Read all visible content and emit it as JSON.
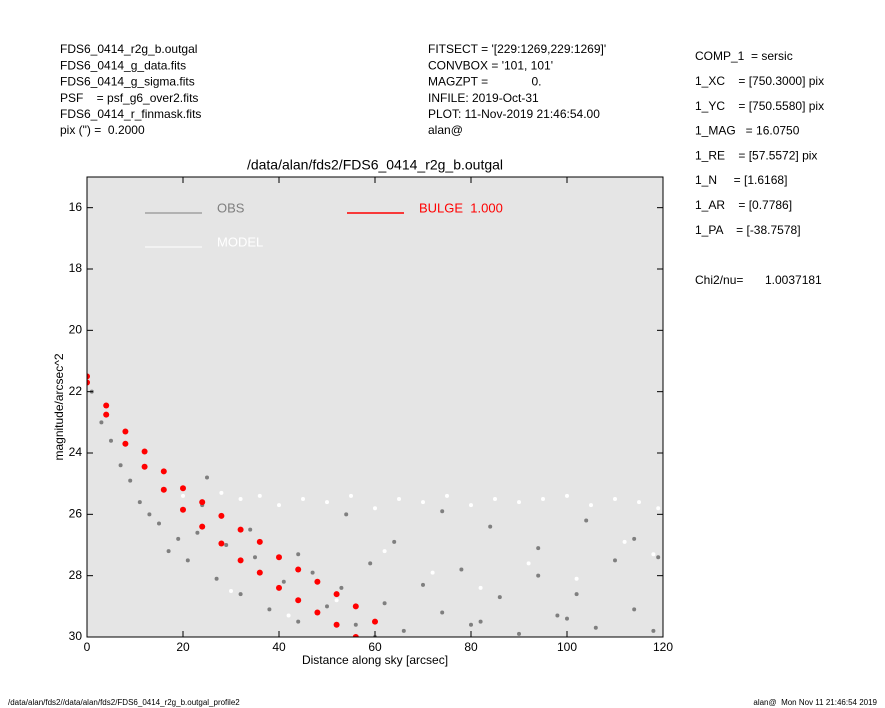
{
  "header": {
    "left": [
      "FDS6_0414_r2g_b.outgal",
      "FDS6_0414_g_data.fits",
      "FDS6_0414_g_sigma.fits",
      "PSF    = psf_g6_over2.fits",
      "FDS6_0414_r_finmask.fits",
      "pix (\") =  0.2000"
    ],
    "center": [
      "FITSECT = '[229:1269,229:1269]'",
      "CONVBOX = '101, 101'",
      "MAGZPT =             0.",
      "INFILE: 2019-Oct-31",
      "PLOT: 11-Nov-2019 21:46:54.00",
      "alan@"
    ],
    "right": [
      "COMP_1  = sersic",
      "1_XC    = [750.3000] pix",
      "1_YC    = [750.5580] pix",
      "1_MAG   = 16.0750",
      "1_RE    = [57.5572] pix",
      "1_N     = [1.6168]",
      "1_AR    = [0.7786]",
      "1_PA    = [-38.7578]"
    ],
    "chi2_label": "Chi2/nu=",
    "chi2_value": "1.0037181"
  },
  "footer": {
    "left": "/data/alan/fds2//data/alan/fds2/FDS6_0414_r2g_b.outgal_profile2",
    "right": "alan@  Mon Nov 11 21:46:54 2019"
  },
  "chart_data": {
    "type": "scatter",
    "title": "/data/alan/fds2/FDS6_0414_r2g_b.outgal",
    "x_label": "Distance along sky [arcsec]",
    "y_label": "magnitude/arcsec^2",
    "xlim": [
      0,
      120
    ],
    "xticks": [
      0,
      20,
      40,
      60,
      80,
      100,
      120
    ],
    "ylim": [
      30,
      15
    ],
    "yticks": [
      16,
      18,
      20,
      22,
      24,
      26,
      28,
      30
    ],
    "background": "#e5e5e5",
    "series": [
      {
        "name": "OBS",
        "color": "#7f7f7f",
        "x": [
          1,
          3,
          5,
          7,
          9,
          11,
          13,
          15,
          17,
          19,
          21,
          23,
          25,
          27,
          29,
          32,
          35,
          38,
          41,
          44,
          47,
          50,
          53,
          56,
          59,
          62,
          66,
          70,
          74,
          78,
          82,
          86,
          90,
          94,
          98,
          102,
          106,
          110,
          114,
          118,
          24,
          34,
          44,
          54,
          64,
          74,
          84,
          94,
          104,
          114,
          119,
          60,
          80,
          100
        ],
        "values": [
          22.0,
          23.0,
          23.6,
          24.4,
          24.9,
          25.6,
          26.0,
          26.3,
          27.2,
          26.8,
          27.5,
          26.6,
          24.8,
          28.1,
          27.0,
          28.6,
          27.4,
          29.1,
          28.2,
          29.5,
          27.9,
          29.0,
          28.4,
          29.6,
          27.6,
          28.9,
          29.8,
          28.3,
          29.2,
          27.8,
          29.5,
          28.7,
          29.9,
          28.0,
          29.3,
          28.6,
          29.7,
          27.5,
          29.1,
          29.8,
          25.7,
          26.5,
          27.3,
          26.0,
          26.9,
          25.9,
          26.4,
          27.1,
          26.2,
          26.8,
          27.4,
          30.0,
          29.6,
          29.4
        ]
      },
      {
        "name": "MODEL",
        "color": "#ffffff",
        "x": [
          20,
          24,
          28,
          32,
          36,
          40,
          45,
          50,
          55,
          60,
          65,
          70,
          75,
          80,
          85,
          90,
          95,
          100,
          105,
          110,
          115,
          119,
          30,
          42,
          52,
          62,
          72,
          82,
          92,
          102,
          112,
          118
        ],
        "values": [
          25.4,
          25.6,
          25.3,
          25.5,
          25.4,
          25.7,
          25.5,
          25.6,
          25.4,
          25.8,
          25.5,
          25.6,
          25.4,
          25.7,
          25.5,
          25.6,
          25.5,
          25.4,
          25.7,
          25.5,
          25.6,
          25.8,
          28.5,
          29.3,
          28.8,
          27.2,
          27.9,
          28.4,
          27.6,
          28.1,
          26.9,
          27.3
        ]
      },
      {
        "name": "BULGE  1.000",
        "color": "#ff0000",
        "x": [
          0,
          0,
          4,
          4,
          8,
          8,
          12,
          12,
          16,
          16,
          20,
          20,
          24,
          24,
          28,
          28,
          32,
          32,
          36,
          36,
          40,
          40,
          44,
          44,
          48,
          48,
          52,
          52,
          56,
          56,
          60
        ],
        "values": [
          21.5,
          21.7,
          22.45,
          22.75,
          23.3,
          23.7,
          23.95,
          24.45,
          24.6,
          25.2,
          25.15,
          25.85,
          25.6,
          26.4,
          26.05,
          26.95,
          26.5,
          27.5,
          26.9,
          27.9,
          27.4,
          28.4,
          27.8,
          28.8,
          28.2,
          29.2,
          28.6,
          29.6,
          29.0,
          30.0,
          29.5
        ]
      }
    ]
  }
}
